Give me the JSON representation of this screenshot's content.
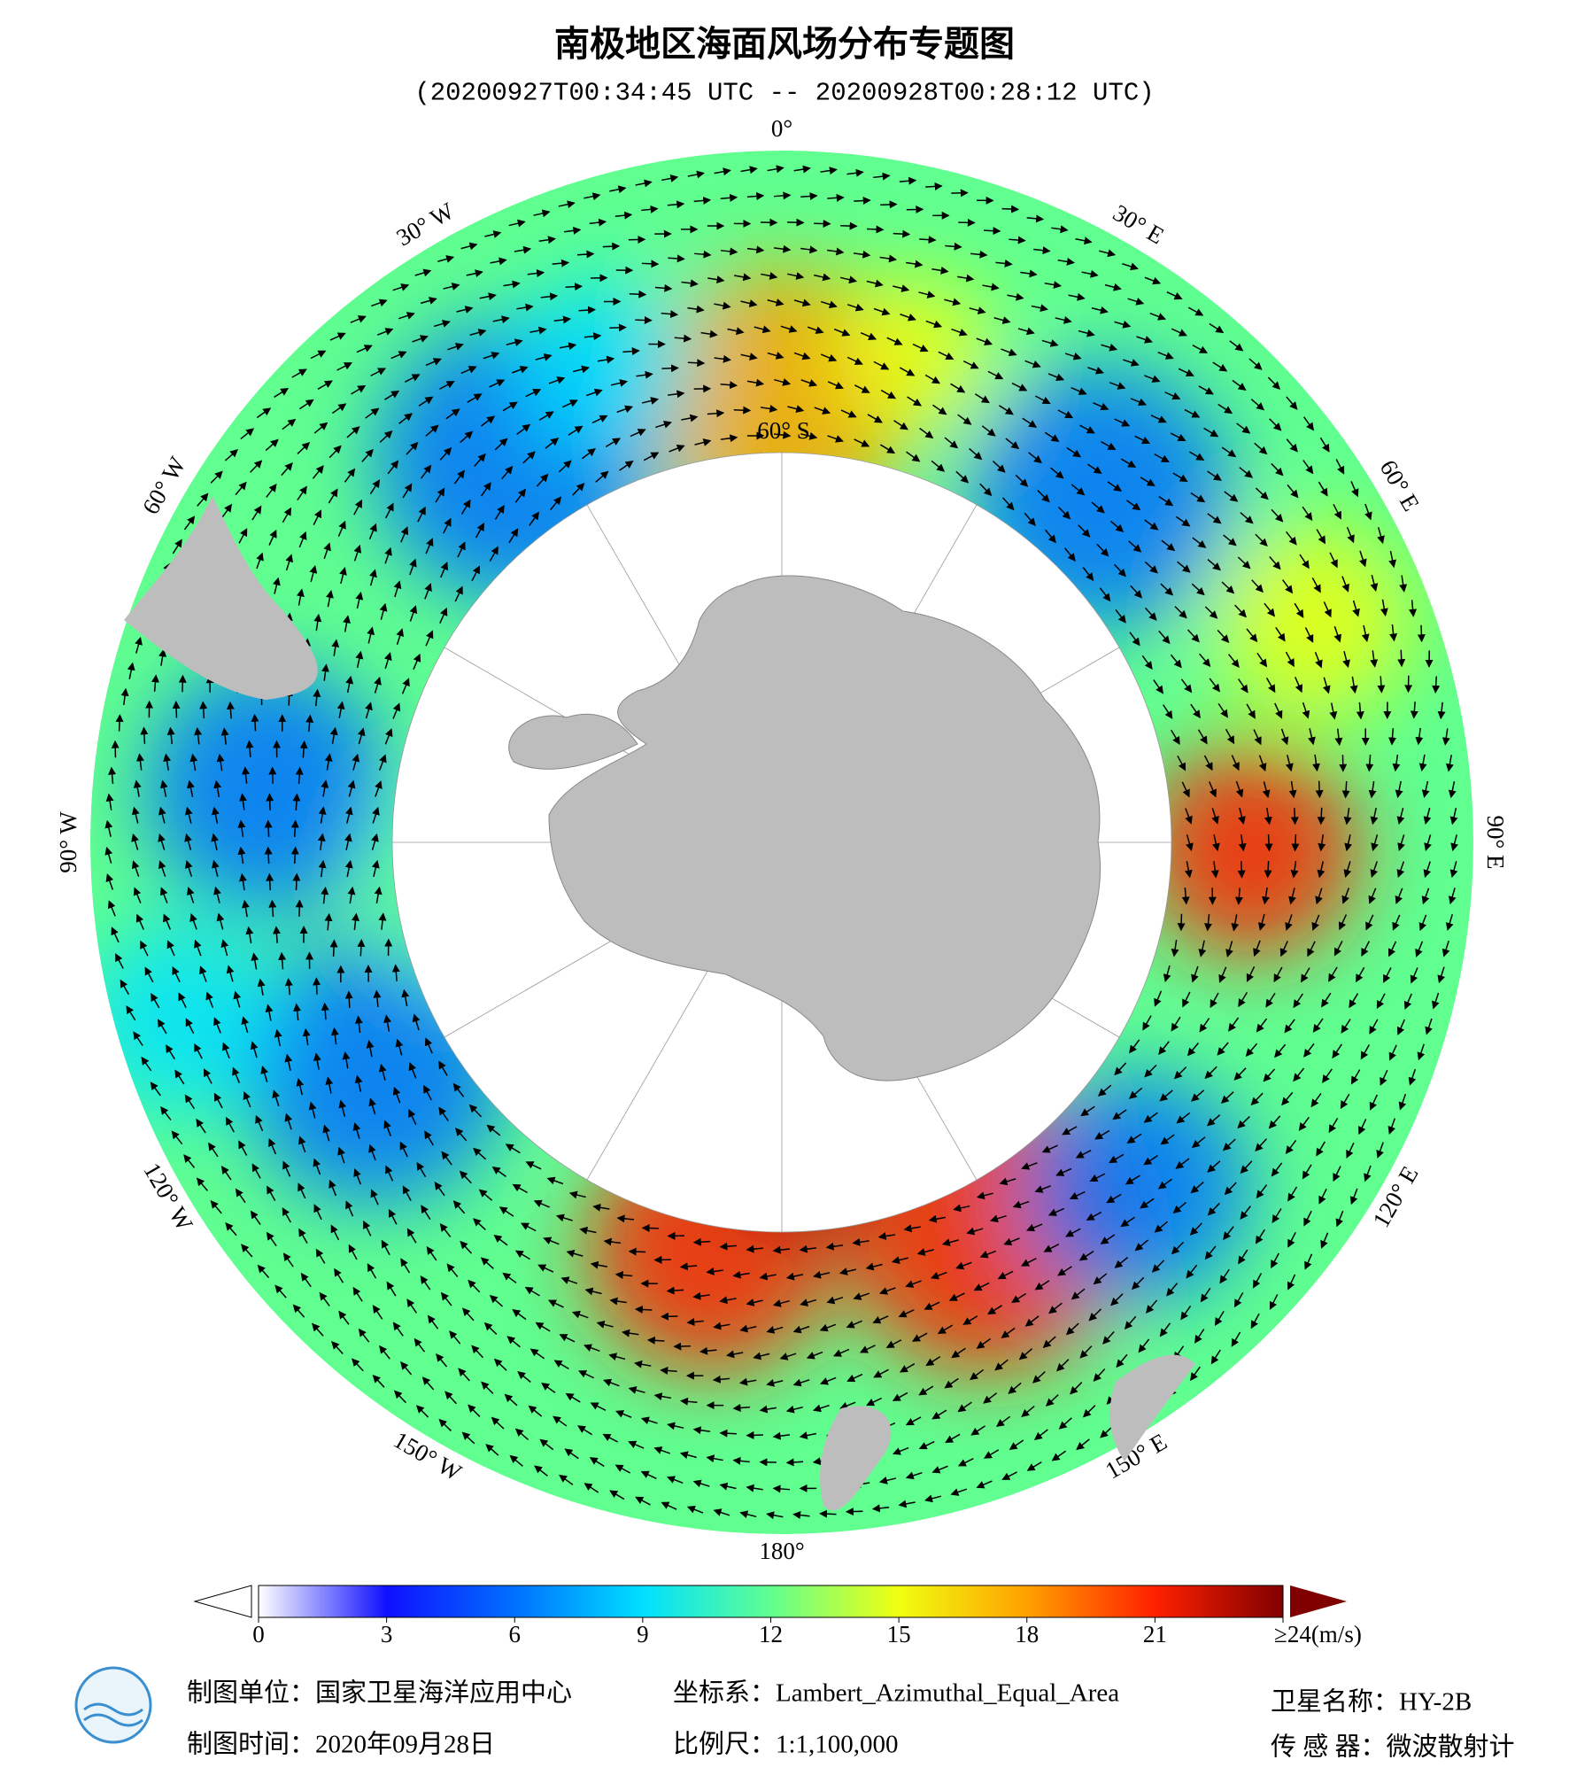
{
  "header": {
    "title": "南极地区海面风场分布专题图",
    "subtitle": "(20200927T00:34:45 UTC -- 20200928T00:28:12 UTC)"
  },
  "map": {
    "meridian_labels": [
      "0°",
      "30° E",
      "60° E",
      "90° E",
      "120° E",
      "150° E",
      "180°",
      "150° W",
      "120° W",
      "90° W",
      "60° W",
      "30° W"
    ],
    "parallel_label": "60° S"
  },
  "colorbar": {
    "lim": [
      0,
      24
    ],
    "ticks": [
      0,
      3,
      6,
      9,
      12,
      15,
      18,
      21,
      {
        "value": 24,
        "label": "≥24(m/s)"
      }
    ],
    "colors": [
      "#ffffff",
      "#1010ff",
      "#0070ff",
      "#00e0ff",
      "#60ff90",
      "#f0ff10",
      "#ffa000",
      "#ff2000",
      "#800000"
    ]
  },
  "footer": {
    "unit": "制图单位：国家卫星海洋应用中心",
    "date": "制图时间：2020年09月28日",
    "crs": "坐标系：Lambert_Azimuthal_Equal_Area",
    "scale": "比例尺：1:1,100,000",
    "satellite": "卫星名称：HY-2B",
    "sensor": "传 感 器：微波散射计"
  }
}
